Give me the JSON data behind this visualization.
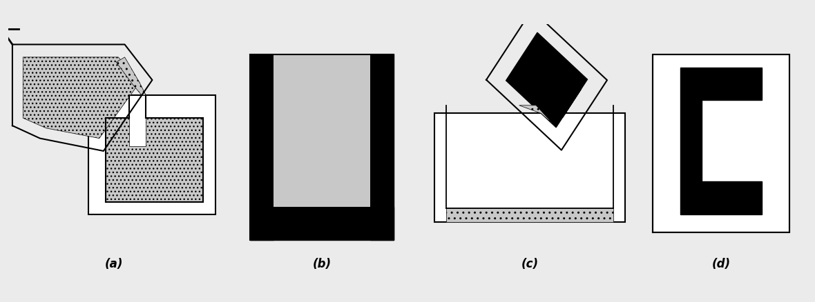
{
  "bg_color": "#ebebeb",
  "fig_bg": "#ebebeb",
  "labels": [
    "(a)",
    "(b)",
    "(c)",
    "(d)"
  ],
  "label_fontsize": 12,
  "slip_color": "#c8c8c8",
  "white": "#ffffff",
  "black": "#000000"
}
